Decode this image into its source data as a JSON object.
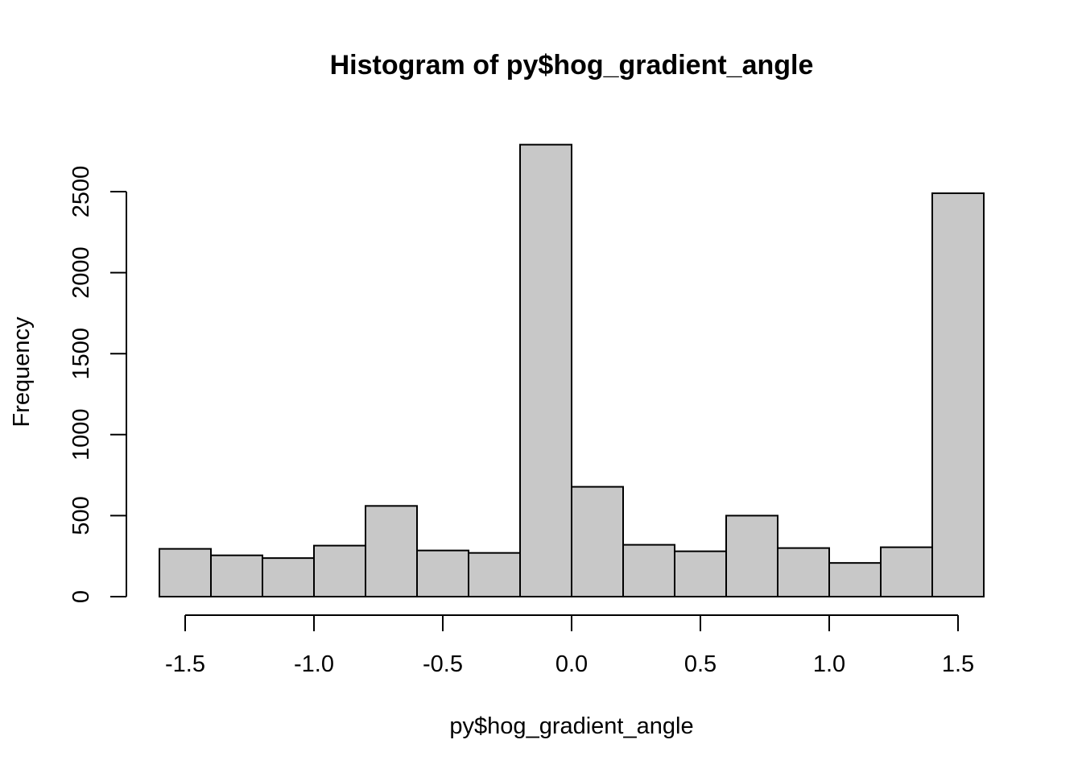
{
  "chart_data": {
    "type": "bar",
    "title": "Histogram of py$hog_gradient_angle",
    "xlabel": "py$hog_gradient_angle",
    "ylabel": "Frequency",
    "bin_edges": [
      -1.6,
      -1.4,
      -1.2,
      -1.0,
      -0.8,
      -0.6,
      -0.4,
      -0.2,
      0.0,
      0.2,
      0.4,
      0.6,
      0.8,
      1.0,
      1.2,
      1.4,
      1.6
    ],
    "values": [
      295,
      255,
      238,
      315,
      560,
      285,
      270,
      2790,
      678,
      320,
      280,
      500,
      300,
      208,
      305,
      2490
    ],
    "xlim": [
      -1.6,
      1.6
    ],
    "ylim": [
      0,
      2800
    ],
    "x_ticks": [
      -1.5,
      -1.0,
      -0.5,
      0.0,
      0.5,
      1.0,
      1.5
    ],
    "x_tick_labels": [
      "-1.5",
      "-1.0",
      "-0.5",
      "0.0",
      "0.5",
      "1.0",
      "1.5"
    ],
    "y_ticks": [
      0,
      500,
      1000,
      1500,
      2000,
      2500
    ],
    "y_tick_labels": [
      "0",
      "500",
      "1000",
      "1500",
      "2000",
      "2500"
    ],
    "bar_fill": "#c8c8c8",
    "bar_stroke": "#000000",
    "grid": false,
    "legend": "none"
  }
}
